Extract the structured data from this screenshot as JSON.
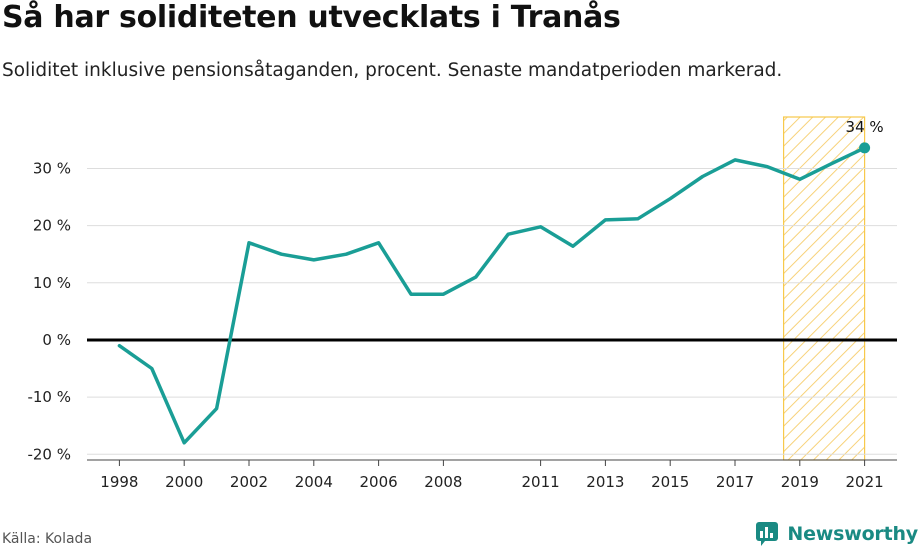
{
  "title": "Så har soliditeten utvecklats i Tranås",
  "subtitle": "Soliditet inklusive pensionsåtaganden, procent. Senaste mandatperioden markerad.",
  "source": "Källa: Kolada",
  "brand": {
    "name": "Newsworthy",
    "color": "#1a8a83"
  },
  "chart_data": {
    "type": "line",
    "x": [
      1998,
      1999,
      2000,
      2001,
      2002,
      2003,
      2004,
      2005,
      2006,
      2007,
      2008,
      2009,
      2010,
      2011,
      2012,
      2013,
      2014,
      2015,
      2016,
      2017,
      2018,
      2019,
      2020,
      2021
    ],
    "x_tick_labels": [
      "1998",
      "2000",
      "2002",
      "2004",
      "2006",
      "2008",
      "2011",
      "2013",
      "2015",
      "2017",
      "2019",
      "2021"
    ],
    "series": [
      {
        "values": [
          -1,
          -5,
          -18,
          -12,
          17,
          15,
          14,
          15,
          17,
          8,
          8,
          11,
          18.5,
          19.8,
          16.4,
          21,
          21.2,
          24.7,
          28.6,
          31.5,
          30.3,
          28.1,
          30.9,
          33.6
        ],
        "color": "#1a9e96"
      }
    ],
    "y_ticks": [
      -20,
      -10,
      0,
      10,
      20,
      30
    ],
    "y_tick_labels": [
      "-20 %",
      "-10 %",
      "0 %",
      "10 %",
      "20 %",
      "30 %"
    ],
    "ylim": [
      -21,
      39
    ],
    "xlim": [
      1997,
      2022
    ],
    "zero_line": true,
    "grid": "horizontal",
    "highlight": {
      "x_start": 2018.5,
      "x_end": 2021,
      "color": "#f7c94b"
    },
    "end_label": "34 %",
    "xlabel": "",
    "ylabel": ""
  }
}
